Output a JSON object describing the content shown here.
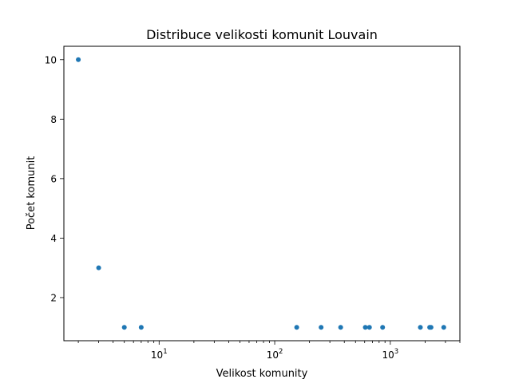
{
  "chart_data": {
    "type": "scatter",
    "title": "Distribuce velikosti komunit Louvain",
    "xlabel": "Velikost komunity",
    "ylabel": "Počet komunit",
    "x_scale": "log",
    "xlim": [
      1.5,
      4000
    ],
    "ylim": [
      0.55,
      10.45
    ],
    "x_ticks": [
      {
        "value": 10,
        "base": "10",
        "exp": "1"
      },
      {
        "value": 100,
        "base": "10",
        "exp": "2"
      },
      {
        "value": 1000,
        "base": "10",
        "exp": "3"
      }
    ],
    "y_ticks": [
      {
        "value": 2,
        "label": "2"
      },
      {
        "value": 4,
        "label": "4"
      },
      {
        "value": 6,
        "label": "6"
      },
      {
        "value": 8,
        "label": "8"
      },
      {
        "value": 10,
        "label": "10"
      }
    ],
    "marker_color": "#1f77b4",
    "grid": false,
    "points": [
      {
        "x": 2,
        "y": 10
      },
      {
        "x": 3,
        "y": 3
      },
      {
        "x": 5,
        "y": 1
      },
      {
        "x": 7,
        "y": 1
      },
      {
        "x": 155,
        "y": 1
      },
      {
        "x": 252,
        "y": 1
      },
      {
        "x": 372,
        "y": 1
      },
      {
        "x": 608,
        "y": 1
      },
      {
        "x": 660,
        "y": 1
      },
      {
        "x": 858,
        "y": 1
      },
      {
        "x": 1820,
        "y": 1
      },
      {
        "x": 2190,
        "y": 1
      },
      {
        "x": 2250,
        "y": 1
      },
      {
        "x": 2900,
        "y": 1
      }
    ]
  }
}
